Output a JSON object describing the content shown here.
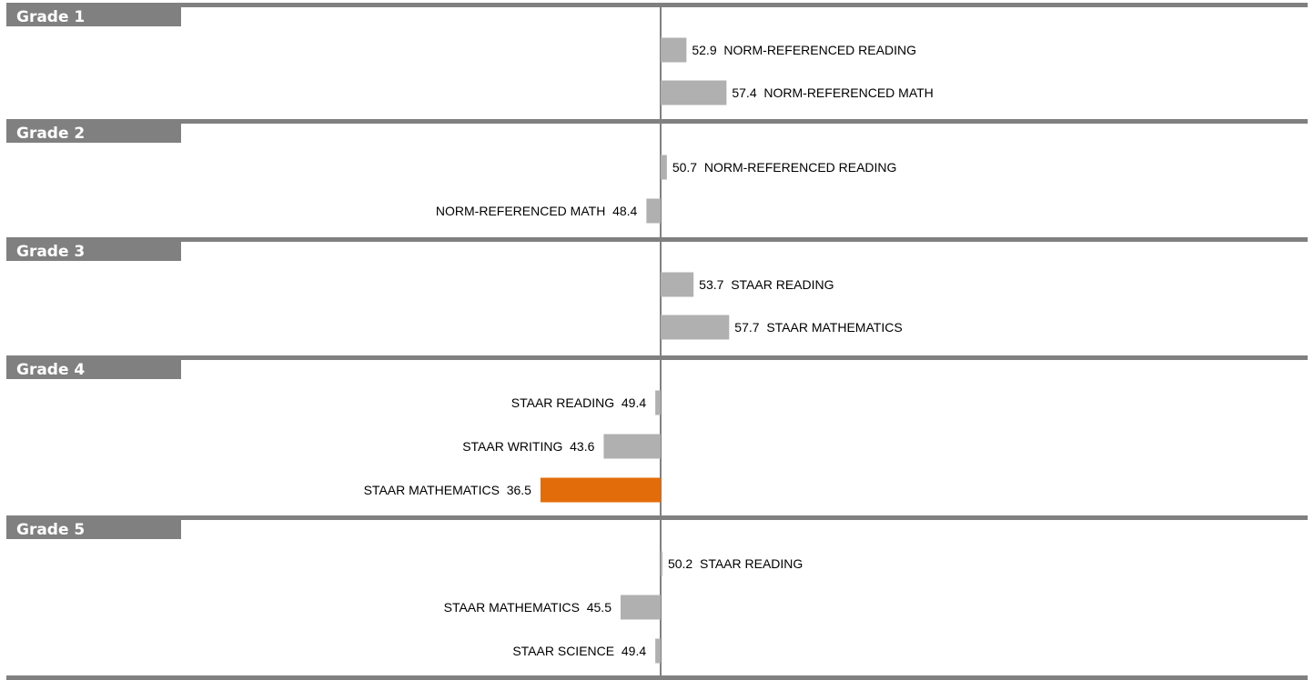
{
  "chart_data": {
    "type": "bar",
    "orientation": "horizontal",
    "baseline": 50,
    "colors": {
      "default_bar": "#b0b0b0",
      "highlight_bar": "#e36c0a",
      "group_header": "#808080",
      "axis": "#000000"
    },
    "groups": [
      {
        "name": "Grade 1",
        "bars": [
          {
            "label": "NORM-REFERENCED READING",
            "value": 52.9,
            "highlight": false
          },
          {
            "label": "NORM-REFERENCED MATH",
            "value": 57.4,
            "highlight": false
          }
        ]
      },
      {
        "name": "Grade 2",
        "bars": [
          {
            "label": "NORM-REFERENCED READING",
            "value": 50.7,
            "highlight": false
          },
          {
            "label": "NORM-REFERENCED MATH",
            "value": 48.4,
            "highlight": false
          }
        ]
      },
      {
        "name": "Grade 3",
        "bars": [
          {
            "label": "STAAR READING",
            "value": 53.7,
            "highlight": false
          },
          {
            "label": "STAAR MATHEMATICS",
            "value": 57.7,
            "highlight": false
          }
        ]
      },
      {
        "name": "Grade 4",
        "bars": [
          {
            "label": "STAAR READING",
            "value": 49.4,
            "highlight": false
          },
          {
            "label": "STAAR WRITING",
            "value": 43.6,
            "highlight": false
          },
          {
            "label": "STAAR MATHEMATICS",
            "value": 36.5,
            "highlight": true
          }
        ]
      },
      {
        "name": "Grade 5",
        "bars": [
          {
            "label": "STAAR READING",
            "value": 50.2,
            "highlight": false
          },
          {
            "label": "STAAR MATHEMATICS",
            "value": 45.5,
            "highlight": false
          },
          {
            "label": "STAAR SCIENCE",
            "value": 49.4,
            "highlight": false
          }
        ]
      }
    ]
  }
}
